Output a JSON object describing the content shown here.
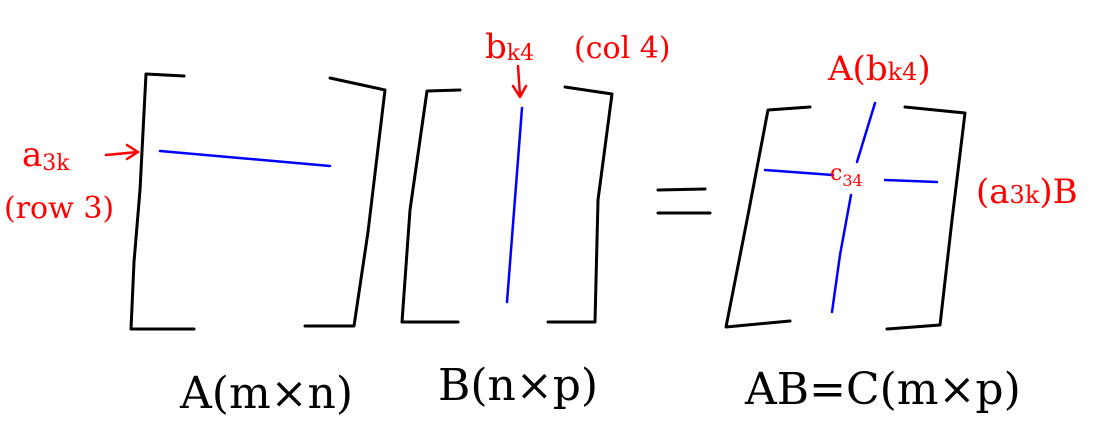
{
  "colors": {
    "ink": "#000000",
    "annotation": "#ff0000",
    "highlight": "#0000ff",
    "background": "#ffffff"
  },
  "labels": {
    "matrix_a": "A(m×n)",
    "matrix_b": "B(n×p)",
    "matrix_c": "AB=C(m×p)",
    "equals": "="
  },
  "annotations": {
    "row_label_base": "a",
    "row_label_sub": "3k",
    "row_note": "(row 3)",
    "col_label_base": "b",
    "col_label_sub": "k4",
    "col_note": "(col 4)",
    "result_top_base": "A(b",
    "result_top_sub": "k4",
    "result_top_close": ")",
    "result_side_base": "(a",
    "result_side_sub": "3k",
    "result_side_close": ")B",
    "entry_base": "c",
    "entry_sub": "34"
  }
}
